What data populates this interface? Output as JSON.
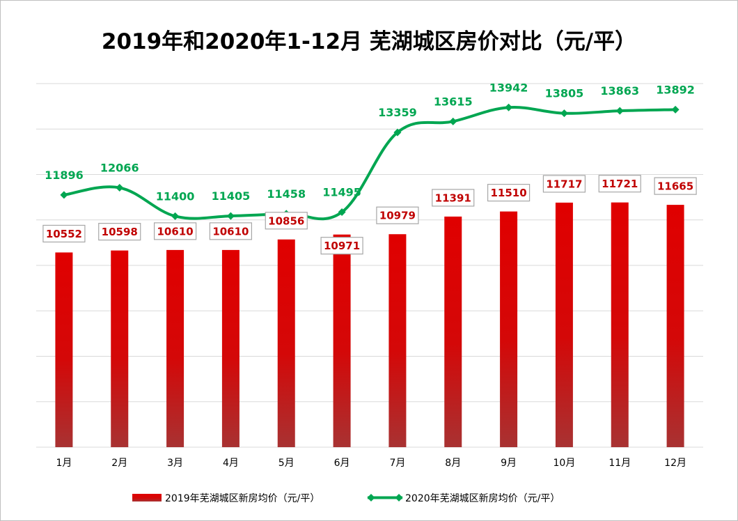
{
  "chart_data": {
    "type": "bar",
    "title": "2019年和2020年1-12月 芜湖城区房价对比（元/平）",
    "categories": [
      "1月",
      "2月",
      "3月",
      "4月",
      "5月",
      "6月",
      "7月",
      "8月",
      "9月",
      "10月",
      "11月",
      "12月"
    ],
    "ylim": [
      6000,
      14500
    ],
    "grid": true,
    "legend_position": "bottom",
    "series": [
      {
        "name": "2019年芜湖城区新房均价（元/平）",
        "type": "bar",
        "color": "#e00000",
        "color_bottom": "#a83232",
        "values": [
          10552,
          10598,
          10610,
          10610,
          10856,
          10971,
          10979,
          11391,
          11510,
          11717,
          11721,
          11665
        ]
      },
      {
        "name": "2020年芜湖城区新房均价（元/平）",
        "type": "line",
        "color": "#00a651",
        "values": [
          11896,
          12066,
          11400,
          11405,
          11458,
          11495,
          13359,
          13615,
          13942,
          13805,
          13863,
          13892
        ]
      }
    ]
  }
}
